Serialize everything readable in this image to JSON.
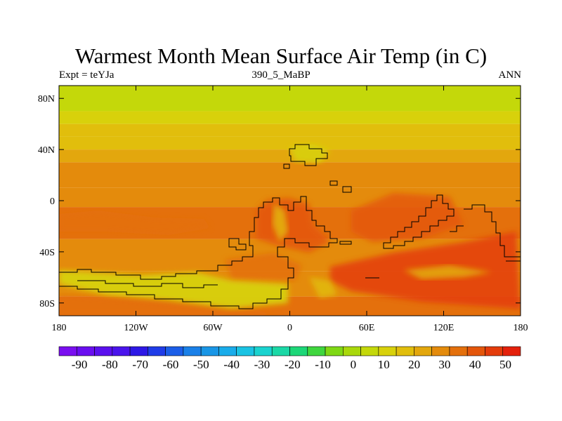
{
  "title": "Warmest Month Mean Surface Air Temp (in C)",
  "left_label": "Expt = teYJa",
  "center_label": "390_5_MaBP",
  "right_label": "ANN",
  "lat_ticks": [
    {
      "value": 80,
      "label": "80N"
    },
    {
      "value": 40,
      "label": "40N"
    },
    {
      "value": 0,
      "label": "0"
    },
    {
      "value": -40,
      "label": "40S"
    },
    {
      "value": -80,
      "label": "80S"
    }
  ],
  "lon_ticks": [
    {
      "value": -180,
      "label": "180"
    },
    {
      "value": -120,
      "label": "120W"
    },
    {
      "value": -60,
      "label": "60W"
    },
    {
      "value": 0,
      "label": "0"
    },
    {
      "value": 60,
      "label": "60E"
    },
    {
      "value": 120,
      "label": "120E"
    },
    {
      "value": 180,
      "label": "180"
    }
  ],
  "colorbar": {
    "colors": [
      "#7a0ff0",
      "#6a0ef0",
      "#5a10ee",
      "#4a14ec",
      "#2d18e6",
      "#1f3ce8",
      "#1b5ee8",
      "#1a80e8",
      "#1996e6",
      "#19acea",
      "#1ac3e3",
      "#1ad3cf",
      "#1bd8a6",
      "#1dd778",
      "#3fd63e",
      "#7fd814",
      "#a9d80b",
      "#c4d80a",
      "#d8d10b",
      "#e1be0c",
      "#e3a70d",
      "#e48b0c",
      "#e4700c",
      "#e4560b",
      "#e43c0b",
      "#e4210b"
    ],
    "labels": [
      "-90",
      "-80",
      "-70",
      "-60",
      "-50",
      "-40",
      "-30",
      "-20",
      "-10",
      "0",
      "10",
      "20",
      "30",
      "40",
      "50"
    ]
  },
  "chart_data": {
    "type": "heatmap",
    "title": "Warmest Month Mean Surface Air Temp (in C)",
    "subtitle": "390_5_MaBP",
    "units": "C",
    "x_range": [
      -180,
      180
    ],
    "y_range": [
      -90,
      90
    ],
    "color_range": [
      -95,
      55
    ],
    "bands": [
      {
        "lat_from": 90,
        "lat_to": 70,
        "value": 5
      },
      {
        "lat_from": 70,
        "lat_to": 60,
        "value": 10
      },
      {
        "lat_from": 60,
        "lat_to": 50,
        "value": 15
      },
      {
        "lat_from": 50,
        "lat_to": 40,
        "value": 20
      },
      {
        "lat_from": 40,
        "lat_to": 30,
        "value": 23
      },
      {
        "lat_from": 30,
        "lat_to": 10,
        "value": 27
      },
      {
        "lat_from": 10,
        "lat_to": -5,
        "value": 30
      },
      {
        "lat_from": -5,
        "lat_to": -30,
        "value": 33
      },
      {
        "lat_from": -30,
        "lat_to": -55,
        "value": 30
      },
      {
        "lat_from": -55,
        "lat_to": -75,
        "value": 27
      },
      {
        "lat_from": -75,
        "lat_to": -90,
        "value": 33
      }
    ]
  }
}
